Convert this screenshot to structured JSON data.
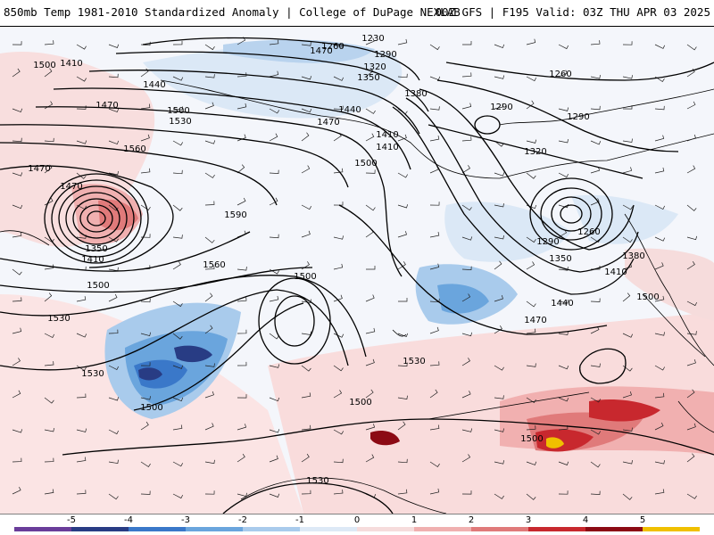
{
  "header": {
    "left_title": "850mb Temp 1981-2010 Standardized Anomaly | College of DuPage NEXLAB",
    "right_title": "00Z GFS | F195 Valid: 03Z THU APR 03 2025"
  },
  "map": {
    "height_labels": [
      {
        "id": "h1230",
        "text": "1230"
      },
      {
        "id": "h1260a",
        "text": "1260"
      },
      {
        "id": "h1290a",
        "text": "1290"
      },
      {
        "id": "h1320a",
        "text": "1320"
      },
      {
        "id": "h1350a",
        "text": "1350"
      },
      {
        "id": "h1380a",
        "text": "1380"
      },
      {
        "id": "h1410a",
        "text": "1410"
      },
      {
        "id": "h1440a",
        "text": "1440"
      },
      {
        "id": "h1470a",
        "text": "1470"
      },
      {
        "id": "h1500a",
        "text": "1500"
      },
      {
        "id": "h1530a",
        "text": "1530"
      },
      {
        "id": "h1560a",
        "text": "1560"
      },
      {
        "id": "h1410b",
        "text": "1410"
      },
      {
        "id": "h1440b",
        "text": "1440"
      },
      {
        "id": "h1470b",
        "text": "1470"
      },
      {
        "id": "h1410c",
        "text": "1410"
      },
      {
        "id": "h1470c",
        "text": "1470"
      },
      {
        "id": "h1500b",
        "text": "1500"
      },
      {
        "id": "h1470d",
        "text": "1470"
      },
      {
        "id": "h1350b",
        "text": "1350"
      },
      {
        "id": "h1410d",
        "text": "1410"
      },
      {
        "id": "h1500c",
        "text": "1500"
      },
      {
        "id": "h1530b",
        "text": "1530"
      },
      {
        "id": "h1560b",
        "text": "1560"
      },
      {
        "id": "h1590",
        "text": "1590"
      },
      {
        "id": "h1500d",
        "text": "1500"
      },
      {
        "id": "h1500e",
        "text": "1500"
      },
      {
        "id": "h1530c",
        "text": "1530"
      },
      {
        "id": "h1500f",
        "text": "1500"
      },
      {
        "id": "h1530d",
        "text": "1530"
      },
      {
        "id": "h1500g",
        "text": "1500"
      },
      {
        "id": "h1530e",
        "text": "1530"
      },
      {
        "id": "h1290b",
        "text": "1290"
      },
      {
        "id": "h1260b",
        "text": "1260"
      },
      {
        "id": "h1290c",
        "text": "1290"
      },
      {
        "id": "h1320b",
        "text": "1320"
      },
      {
        "id": "h1260c",
        "text": "1260"
      },
      {
        "id": "h1290d",
        "text": "1290"
      },
      {
        "id": "h1350c",
        "text": "1350"
      },
      {
        "id": "h1380b",
        "text": "1380"
      },
      {
        "id": "h1410e",
        "text": "1410"
      },
      {
        "id": "h1440c",
        "text": "1440"
      },
      {
        "id": "h1470e",
        "text": "1470"
      },
      {
        "id": "h1500h",
        "text": "1500"
      },
      {
        "id": "h1500i",
        "text": "1500"
      },
      {
        "id": "h1470f",
        "text": "1470"
      }
    ]
  },
  "colorbar": {
    "ticks": [
      "-5",
      "-4",
      "-3",
      "-2",
      "-1",
      "0",
      "1",
      "2",
      "3",
      "4",
      "5"
    ],
    "colors": [
      "#6a3d9a",
      "#283c84",
      "#3a78c9",
      "#6aa5dd",
      "#a9cbec",
      "#dde9f6",
      "#f6dcdc",
      "#f0b0b0",
      "#e07a7a",
      "#c8282e",
      "#8c0a14",
      "#f0c000"
    ]
  }
}
